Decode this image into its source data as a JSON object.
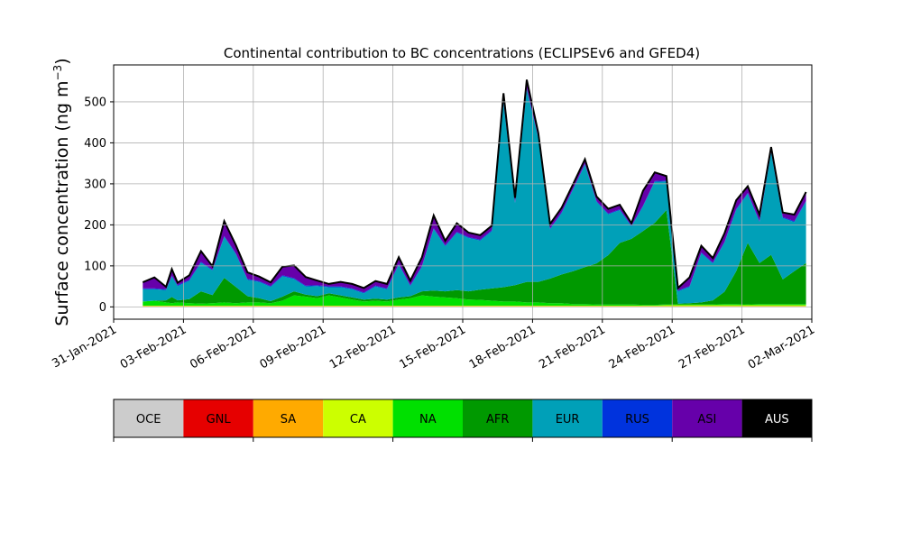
{
  "chart_data": {
    "type": "area",
    "stacked": true,
    "title": "Continental contribution to BC concentrations (ECLIPSEv6 and GFED4)",
    "ylabel_main": "Surface concentration (ng m",
    "ylabel_sup": "−3",
    "ylabel_close": ")",
    "xlim": [
      "2021-01-31",
      "2021-03-02"
    ],
    "xticks": [
      "31-Jan-2021",
      "03-Feb-2021",
      "06-Feb-2021",
      "09-Feb-2021",
      "12-Feb-2021",
      "15-Feb-2021",
      "18-Feb-2021",
      "21-Feb-2021",
      "24-Feb-2021",
      "27-Feb-2021",
      "02-Mar-2021"
    ],
    "xtick_dates": [
      "2021-01-31",
      "2021-02-03",
      "2021-02-06",
      "2021-02-09",
      "2021-02-12",
      "2021-02-15",
      "2021-02-18",
      "2021-02-21",
      "2021-02-24",
      "2021-02-27",
      "2021-03-02"
    ],
    "yticks": [
      0,
      100,
      200,
      300,
      400,
      500
    ],
    "ylim": [
      -30,
      590
    ],
    "grid": true,
    "legend_placement": "bottom",
    "x_dates": [
      "2021-02-01T06",
      "2021-02-01T18",
      "2021-02-02T06",
      "2021-02-02T12",
      "2021-02-02T18",
      "2021-02-03T06",
      "2021-02-03T18",
      "2021-02-04T06",
      "2021-02-04T18",
      "2021-02-05T06",
      "2021-02-05T18",
      "2021-02-06T06",
      "2021-02-06T18",
      "2021-02-07T06",
      "2021-02-07T18",
      "2021-02-08T06",
      "2021-02-08T18",
      "2021-02-09T06",
      "2021-02-09T18",
      "2021-02-10T06",
      "2021-02-10T18",
      "2021-02-11T06",
      "2021-02-11T18",
      "2021-02-12T06",
      "2021-02-12T18",
      "2021-02-13T06",
      "2021-02-13T18",
      "2021-02-14T06",
      "2021-02-14T18",
      "2021-02-15T06",
      "2021-02-15T18",
      "2021-02-16T06",
      "2021-02-16T18",
      "2021-02-17T06",
      "2021-02-17T18",
      "2021-02-18T06",
      "2021-02-18T18",
      "2021-02-19T06",
      "2021-02-19T18",
      "2021-02-20T06",
      "2021-02-20T18",
      "2021-02-21T06",
      "2021-02-21T18",
      "2021-02-22T06",
      "2021-02-22T18",
      "2021-02-23T06",
      "2021-02-23T18",
      "2021-02-24T06",
      "2021-02-24T18",
      "2021-02-25T06",
      "2021-02-25T18",
      "2021-02-26T06",
      "2021-02-26T18",
      "2021-02-27T06",
      "2021-02-27T18",
      "2021-02-28T06",
      "2021-02-28T18",
      "2021-03-01T06",
      "2021-03-01T18"
    ],
    "series": [
      {
        "name": "OCE",
        "color": "#cccccc",
        "values": [
          1,
          1,
          1,
          1,
          1,
          1,
          1,
          1,
          1,
          1,
          1,
          1,
          1,
          1,
          1,
          1,
          1,
          1,
          1,
          1,
          1,
          1,
          1,
          1,
          1,
          1,
          1,
          1,
          1,
          1,
          1,
          1,
          1,
          1,
          1,
          1,
          1,
          1,
          1,
          1,
          1,
          1,
          1,
          1,
          1,
          1,
          1,
          1,
          1,
          1,
          1,
          1,
          1,
          1,
          1,
          1,
          1,
          1,
          1
        ]
      },
      {
        "name": "GNL",
        "color": "#e60000",
        "values": [
          0,
          0,
          0,
          0,
          0,
          0,
          0,
          0,
          0,
          0,
          0,
          0,
          0,
          0,
          0,
          0,
          0,
          0,
          0,
          0,
          0,
          0,
          0,
          0,
          0,
          0,
          0,
          0,
          0,
          0,
          0,
          0,
          0,
          0,
          0,
          0,
          0,
          0,
          0,
          0,
          0,
          0,
          0,
          0,
          0,
          0,
          0,
          0,
          0,
          0,
          0,
          0,
          0,
          0,
          0,
          0,
          0,
          0,
          0
        ]
      },
      {
        "name": "SA",
        "color": "#ffaa00",
        "values": [
          1,
          1,
          1,
          1,
          1,
          1,
          1,
          1,
          1,
          1,
          1,
          1,
          1,
          1,
          1,
          1,
          1,
          1,
          1,
          1,
          1,
          1,
          1,
          1,
          1,
          1,
          1,
          1,
          1,
          1,
          1,
          1,
          1,
          1,
          1,
          1,
          1,
          1,
          1,
          1,
          1,
          1,
          1,
          1,
          1,
          1,
          1,
          1,
          1,
          1,
          1,
          1,
          1,
          1,
          1,
          1,
          1,
          1,
          1
        ]
      },
      {
        "name": "CA",
        "color": "#ccff00",
        "values": [
          1,
          1,
          1,
          1,
          1,
          1,
          1,
          1,
          1,
          1,
          1,
          1,
          1,
          1,
          1,
          1,
          1,
          1,
          1,
          1,
          1,
          1,
          1,
          1,
          1,
          1,
          1,
          1,
          1,
          1,
          1,
          1,
          1,
          1,
          1,
          1,
          1,
          1,
          1,
          1,
          1,
          1,
          1,
          1,
          1,
          1,
          2,
          2,
          2,
          2,
          2,
          2,
          2,
          2,
          2,
          2,
          2,
          2,
          2
        ]
      },
      {
        "name": "NA",
        "color": "#00e000",
        "values": [
          10,
          12,
          8,
          6,
          8,
          6,
          5,
          6,
          8,
          6,
          8,
          8,
          6,
          12,
          25,
          22,
          18,
          25,
          20,
          15,
          10,
          12,
          10,
          15,
          18,
          25,
          22,
          20,
          18,
          15,
          14,
          12,
          10,
          10,
          8,
          8,
          6,
          6,
          4,
          4,
          3,
          3,
          3,
          3,
          2,
          2,
          2,
          2,
          2,
          2,
          2,
          3,
          3,
          2,
          3,
          3,
          3,
          3,
          3
        ]
      },
      {
        "name": "AFR",
        "color": "#009900",
        "values": [
          0,
          0,
          5,
          15,
          5,
          10,
          30,
          20,
          60,
          40,
          15,
          10,
          5,
          10,
          10,
          5,
          5,
          5,
          5,
          5,
          5,
          5,
          5,
          5,
          5,
          10,
          15,
          15,
          20,
          20,
          25,
          30,
          35,
          40,
          50,
          50,
          60,
          70,
          80,
          90,
          100,
          120,
          150,
          160,
          180,
          200,
          230,
          2,
          3,
          5,
          10,
          30,
          80,
          150,
          100,
          120,
          60,
          80,
          100
        ]
      },
      {
        "name": "EUR",
        "color": "#00a0b8",
        "values": [
          30,
          28,
          25,
          50,
          35,
          45,
          70,
          60,
          100,
          80,
          40,
          40,
          35,
          50,
          30,
          20,
          25,
          15,
          20,
          20,
          15,
          30,
          25,
          80,
          25,
          60,
          150,
          110,
          140,
          130,
          120,
          140,
          450,
          200,
          470,
          350,
          120,
          150,
          200,
          250,
          150,
          100,
          80,
          30,
          60,
          100,
          70,
          30,
          40,
          120,
          90,
          120,
          150,
          120,
          100,
          250,
          150,
          120,
          150
        ]
      },
      {
        "name": "RUS",
        "color": "#0033dd",
        "values": [
          2,
          2,
          2,
          2,
          2,
          2,
          2,
          2,
          2,
          2,
          2,
          2,
          2,
          2,
          2,
          2,
          2,
          2,
          2,
          2,
          2,
          2,
          2,
          2,
          2,
          2,
          2,
          2,
          2,
          2,
          2,
          2,
          2,
          2,
          2,
          2,
          2,
          2,
          2,
          2,
          2,
          2,
          2,
          2,
          2,
          2,
          2,
          2,
          2,
          2,
          2,
          2,
          2,
          2,
          2,
          2,
          2,
          2,
          2
        ]
      },
      {
        "name": "ASI",
        "color": "#6600aa",
        "values": [
          14,
          26,
          5,
          15,
          5,
          10,
          25,
          7,
          35,
          19,
          15,
          10,
          8,
          20,
          30,
          20,
          10,
          5,
          10,
          10,
          10,
          10,
          10,
          15,
          10,
          20,
          30,
          10,
          20,
          10,
          10,
          10,
          20,
          10,
          20,
          10,
          10,
          10,
          10,
          10,
          10,
          10,
          10,
          5,
          35,
          20,
          10,
          5,
          20,
          15,
          10,
          20,
          20,
          15,
          15,
          10,
          10,
          15,
          20
        ]
      },
      {
        "name": "AUS",
        "color": "#000000",
        "values": [
          1,
          1,
          1,
          1,
          1,
          1,
          1,
          1,
          1,
          1,
          1,
          1,
          1,
          1,
          1,
          1,
          1,
          1,
          1,
          1,
          1,
          1,
          1,
          1,
          1,
          1,
          1,
          1,
          1,
          1,
          1,
          1,
          1,
          1,
          1,
          1,
          1,
          1,
          1,
          1,
          1,
          1,
          1,
          1,
          1,
          1,
          1,
          1,
          1,
          1,
          1,
          1,
          1,
          1,
          1,
          1,
          1,
          1,
          1
        ]
      }
    ],
    "legend_text_colors": [
      "#000000",
      "#000000",
      "#000000",
      "#000000",
      "#000000",
      "#000000",
      "#000000",
      "#000000",
      "#000000",
      "#ffffff"
    ]
  }
}
